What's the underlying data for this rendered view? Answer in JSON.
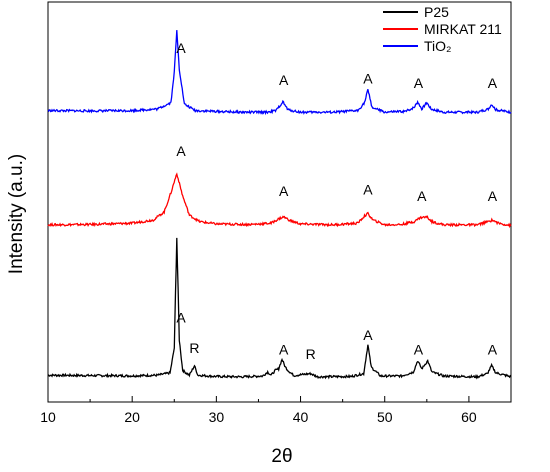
{
  "chart_data": {
    "type": "line",
    "xlabel": "2θ",
    "ylabel": "Intensity (a.u.)",
    "xlim": [
      10,
      65
    ],
    "xticks": [
      10,
      20,
      30,
      40,
      50,
      60
    ],
    "grid": false,
    "legend": "top-right",
    "series": [
      {
        "name": "P25",
        "color": "#000000",
        "baseline": 0.0,
        "points": [
          [
            10,
            0.03
          ],
          [
            15,
            0.028
          ],
          [
            20,
            0.026
          ],
          [
            23,
            0.03
          ],
          [
            24.5,
            0.045
          ],
          [
            25.0,
            0.2
          ],
          [
            25.3,
            0.89
          ],
          [
            25.6,
            0.25
          ],
          [
            26.0,
            0.06
          ],
          [
            26.8,
            0.03
          ],
          [
            27.4,
            0.09
          ],
          [
            27.8,
            0.03
          ],
          [
            30,
            0.022
          ],
          [
            33,
            0.02
          ],
          [
            35.5,
            0.025
          ],
          [
            36.1,
            0.05
          ],
          [
            36.5,
            0.03
          ],
          [
            37.0,
            0.06
          ],
          [
            37.4,
            0.07
          ],
          [
            37.8,
            0.13
          ],
          [
            38.2,
            0.08
          ],
          [
            38.6,
            0.055
          ],
          [
            39.2,
            0.028
          ],
          [
            41.2,
            0.04
          ],
          [
            42,
            0.02
          ],
          [
            46,
            0.022
          ],
          [
            47.5,
            0.04
          ],
          [
            48.0,
            0.22
          ],
          [
            48.4,
            0.08
          ],
          [
            49.5,
            0.025
          ],
          [
            52,
            0.025
          ],
          [
            53.4,
            0.05
          ],
          [
            53.9,
            0.12
          ],
          [
            54.4,
            0.07
          ],
          [
            55.1,
            0.12
          ],
          [
            55.6,
            0.05
          ],
          [
            57,
            0.025
          ],
          [
            61,
            0.02
          ],
          [
            62.2,
            0.04
          ],
          [
            62.7,
            0.09
          ],
          [
            63.2,
            0.045
          ],
          [
            65,
            0.02
          ]
        ]
      },
      {
        "name": "MIRKAT 211",
        "color": "#ff0000",
        "baseline": 1.0,
        "points": [
          [
            10,
            0.02
          ],
          [
            15,
            0.022
          ],
          [
            20,
            0.03
          ],
          [
            22.5,
            0.05
          ],
          [
            23.8,
            0.1
          ],
          [
            24.6,
            0.22
          ],
          [
            25.3,
            0.34
          ],
          [
            26.0,
            0.2
          ],
          [
            26.8,
            0.08
          ],
          [
            28,
            0.04
          ],
          [
            30,
            0.025
          ],
          [
            34,
            0.022
          ],
          [
            36.5,
            0.03
          ],
          [
            37.5,
            0.06
          ],
          [
            38.0,
            0.07
          ],
          [
            38.8,
            0.045
          ],
          [
            40,
            0.025
          ],
          [
            44,
            0.02
          ],
          [
            46.8,
            0.03
          ],
          [
            47.6,
            0.075
          ],
          [
            48.0,
            0.09
          ],
          [
            48.6,
            0.05
          ],
          [
            50,
            0.02
          ],
          [
            52,
            0.022
          ],
          [
            53.5,
            0.04
          ],
          [
            54.2,
            0.065
          ],
          [
            55.0,
            0.07
          ],
          [
            55.6,
            0.04
          ],
          [
            57,
            0.02
          ],
          [
            61,
            0.02
          ],
          [
            62.3,
            0.04
          ],
          [
            62.8,
            0.05
          ],
          [
            63.5,
            0.03
          ],
          [
            65,
            0.015
          ]
        ]
      },
      {
        "name": "TiO₂",
        "color": "#0000ff",
        "baseline": 2.0,
        "points": [
          [
            10,
            0.04
          ],
          [
            15,
            0.038
          ],
          [
            20,
            0.04
          ],
          [
            23,
            0.05
          ],
          [
            24.6,
            0.09
          ],
          [
            25.0,
            0.28
          ],
          [
            25.3,
            0.54
          ],
          [
            25.6,
            0.3
          ],
          [
            26.2,
            0.08
          ],
          [
            27.5,
            0.04
          ],
          [
            30,
            0.035
          ],
          [
            33,
            0.03
          ],
          [
            36,
            0.03
          ],
          [
            37.1,
            0.04
          ],
          [
            37.9,
            0.095
          ],
          [
            38.5,
            0.045
          ],
          [
            40,
            0.03
          ],
          [
            44,
            0.03
          ],
          [
            46.8,
            0.04
          ],
          [
            47.6,
            0.09
          ],
          [
            48.0,
            0.17
          ],
          [
            48.5,
            0.06
          ],
          [
            50,
            0.03
          ],
          [
            52.5,
            0.035
          ],
          [
            53.5,
            0.06
          ],
          [
            53.9,
            0.095
          ],
          [
            54.4,
            0.05
          ],
          [
            55.0,
            0.09
          ],
          [
            55.5,
            0.05
          ],
          [
            57,
            0.03
          ],
          [
            61,
            0.03
          ],
          [
            62.3,
            0.05
          ],
          [
            62.7,
            0.08
          ],
          [
            63.2,
            0.045
          ],
          [
            65,
            0.03
          ]
        ]
      }
    ],
    "annotations": [
      {
        "text": "A",
        "x": 25.8,
        "series": 0,
        "y": 0.36
      },
      {
        "text": "R",
        "x": 27.4,
        "series": 0,
        "y": 0.17
      },
      {
        "text": "A",
        "x": 38.0,
        "series": 0,
        "y": 0.16
      },
      {
        "text": "R",
        "x": 41.2,
        "series": 0,
        "y": 0.13
      },
      {
        "text": "A",
        "x": 48.0,
        "series": 0,
        "y": 0.25
      },
      {
        "text": "A",
        "x": 54.0,
        "series": 0,
        "y": 0.16
      },
      {
        "text": "A",
        "x": 62.8,
        "series": 0,
        "y": 0.16
      },
      {
        "text": "A",
        "x": 25.8,
        "series": 2,
        "y": 0.4
      },
      {
        "text": "A",
        "x": 38.0,
        "series": 2,
        "y": 0.2
      },
      {
        "text": "A",
        "x": 48.0,
        "series": 2,
        "y": 0.21
      },
      {
        "text": "A",
        "x": 54.0,
        "series": 2,
        "y": 0.18
      },
      {
        "text": "A",
        "x": 62.8,
        "series": 2,
        "y": 0.18
      },
      {
        "text": "A",
        "x": 25.8,
        "series": 1,
        "y": 0.45
      },
      {
        "text": "A",
        "x": 38.0,
        "series": 1,
        "y": 0.2
      },
      {
        "text": "A",
        "x": 48.0,
        "series": 1,
        "y": 0.21
      },
      {
        "text": "A",
        "x": 54.4,
        "series": 1,
        "y": 0.17
      },
      {
        "text": "A",
        "x": 62.8,
        "series": 1,
        "y": 0.17
      }
    ]
  }
}
